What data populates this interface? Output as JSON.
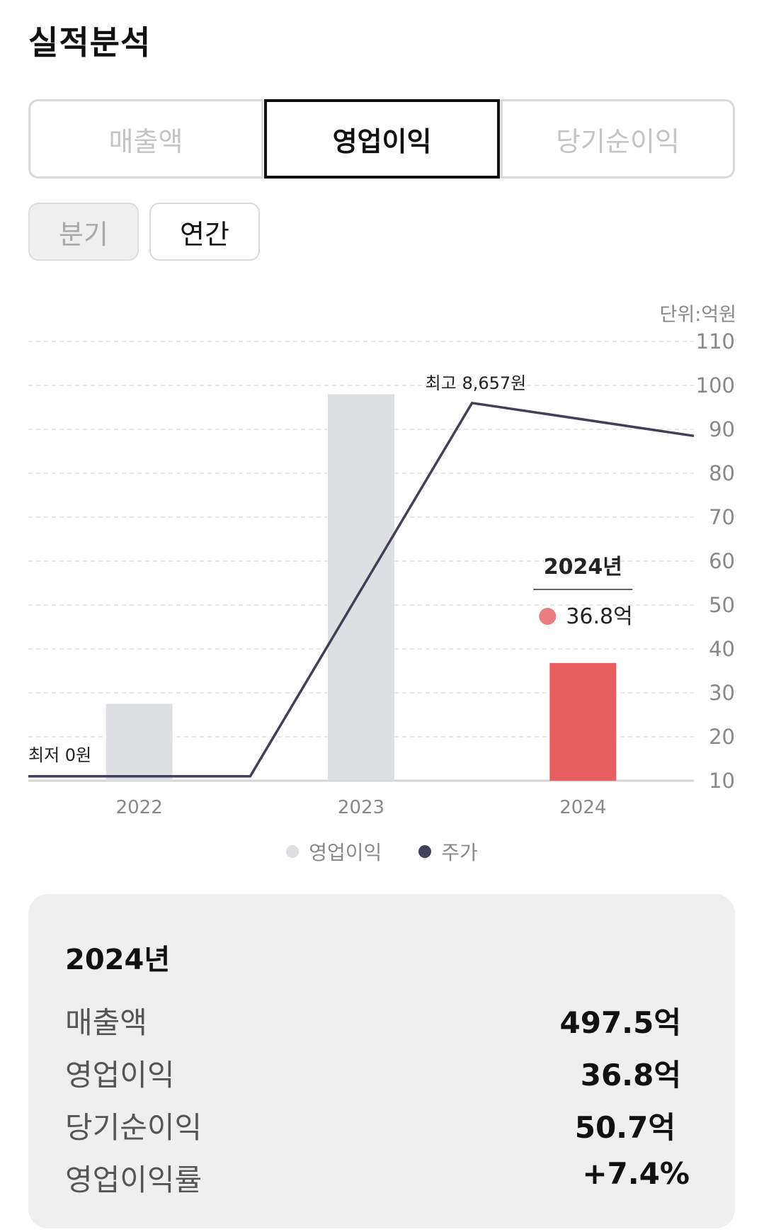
{
  "title": "실적분석",
  "metric_tabs": [
    {
      "label": "매출액",
      "active": false
    },
    {
      "label": "영업이익",
      "active": true
    },
    {
      "label": "당기순이익",
      "active": false
    }
  ],
  "period_tabs": [
    {
      "label": "분기",
      "active": false
    },
    {
      "label": "연간",
      "active": true
    }
  ],
  "colors": {
    "bar_default": "#dedfe3",
    "bar_selected": "#e85d60",
    "line": "#3e4157",
    "tooltip_dot": "#e87e80"
  },
  "chart_data": {
    "type": "bar",
    "unit_label": "단위:억원",
    "categories": [
      "2022",
      "2023",
      "2024"
    ],
    "series": [
      {
        "name": "영업이익",
        "type": "bar",
        "values": [
          27.5,
          98,
          36.8
        ]
      },
      {
        "name": "주가",
        "type": "line",
        "x": [
          "2022",
          "2022.5",
          "2023.5",
          "2024.5"
        ],
        "values": [
          11,
          11,
          96,
          88.5
        ]
      }
    ],
    "y_ticks": [
      "110",
      "100",
      "90",
      "80",
      "70",
      "60",
      "50",
      "40",
      "30",
      "20",
      "10"
    ],
    "ylim": [
      10,
      110
    ],
    "grid": true,
    "legend_position": "bottom-center",
    "annotations": {
      "max": "최고 8,657원",
      "min": "최저 0원"
    },
    "tooltip": {
      "year": "2024년",
      "value": "36.8억"
    },
    "selected_index": 2
  },
  "summary": {
    "year": "2024년",
    "rows": [
      {
        "label": "매출액",
        "value": "497.5억"
      },
      {
        "label": "영업이익",
        "value": "36.8억"
      },
      {
        "label": "당기순이익",
        "value": "50.7억"
      },
      {
        "label": "영업이익률",
        "value": "+7.4%"
      }
    ]
  }
}
